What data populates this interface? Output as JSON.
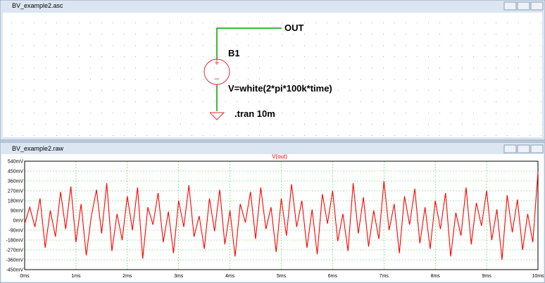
{
  "schematic": {
    "window_title": "BV_example2.asc",
    "net_label": "OUT",
    "source_name": "B1",
    "source_value": "V=white(2*pi*100k*time)",
    "directive": ".tran 10m"
  },
  "waveform": {
    "window_title": "BV_example2.raw"
  },
  "chart_data": {
    "type": "line",
    "x": [
      0,
      0.1,
      0.2,
      0.3,
      0.4,
      0.5,
      0.6,
      0.7,
      0.8,
      0.9,
      1,
      1.1,
      1.2,
      1.3,
      1.4,
      1.5,
      1.6,
      1.7,
      1.8,
      1.9,
      2,
      2.1,
      2.2,
      2.3,
      2.4,
      2.5,
      2.6,
      2.7,
      2.8,
      2.9,
      3,
      3.1,
      3.2,
      3.3,
      3.4,
      3.5,
      3.6,
      3.7,
      3.8,
      3.9,
      4,
      4.1,
      4.2,
      4.3,
      4.4,
      4.5,
      4.6,
      4.7,
      4.8,
      4.9,
      5,
      5.1,
      5.2,
      5.3,
      5.4,
      5.5,
      5.6,
      5.7,
      5.8,
      5.9,
      6,
      6.1,
      6.2,
      6.3,
      6.4,
      6.5,
      6.6,
      6.7,
      6.8,
      6.9,
      7,
      7.1,
      7.2,
      7.3,
      7.4,
      7.5,
      7.6,
      7.7,
      7.8,
      7.9,
      8,
      8.1,
      8.2,
      8.3,
      8.4,
      8.5,
      8.6,
      8.7,
      8.8,
      8.9,
      9,
      9.1,
      9.2,
      9.3,
      9.4,
      9.5,
      9.6,
      9.7,
      9.8,
      9.9,
      10
    ],
    "series": [
      {
        "name": "V(out)",
        "color": "#ff0000",
        "values": [
          -30,
          120,
          -60,
          200,
          -250,
          90,
          -150,
          260,
          -80,
          310,
          -200,
          150,
          -320,
          40,
          280,
          -120,
          340,
          -280,
          60,
          -180,
          220,
          -90,
          300,
          -350,
          120,
          -40,
          250,
          -200,
          80,
          -300,
          180,
          -60,
          320,
          -150,
          40,
          -260,
          200,
          -100,
          280,
          -220,
          90,
          -330,
          150,
          -20,
          260,
          -170,
          300,
          -80,
          120,
          -290,
          200,
          -140,
          330,
          -60,
          180,
          -250,
          100,
          -310,
          240,
          -30,
          270,
          -190,
          60,
          -280,
          340,
          -120,
          210,
          -240,
          90,
          -170,
          360,
          -90,
          150,
          -300,
          220,
          -40,
          290,
          -210,
          120,
          -260,
          180,
          -80,
          250,
          -330,
          70,
          -140,
          300,
          -220,
          160,
          -50,
          270,
          -180,
          100,
          -360,
          230,
          -110,
          190,
          -270,
          60,
          -200,
          440
        ]
      }
    ],
    "xlim": [
      0,
      10
    ],
    "xticks": [
      {
        "value": 0,
        "label": "0ms"
      },
      {
        "value": 1,
        "label": "1ms"
      },
      {
        "value": 2,
        "label": "2ms"
      },
      {
        "value": 3,
        "label": "3ms"
      },
      {
        "value": 4,
        "label": "4ms"
      },
      {
        "value": 5,
        "label": "5ms"
      },
      {
        "value": 6,
        "label": "6ms"
      },
      {
        "value": 7,
        "label": "7ms"
      },
      {
        "value": 8,
        "label": "8ms"
      },
      {
        "value": 9,
        "label": "9ms"
      },
      {
        "value": 10,
        "label": "10ms"
      }
    ],
    "ylim": [
      -450,
      540
    ],
    "yticks": [
      {
        "value": -450,
        "label": "-450mV"
      },
      {
        "value": -360,
        "label": "-360mV"
      },
      {
        "value": -270,
        "label": "-270mV"
      },
      {
        "value": -180,
        "label": "-180mV"
      },
      {
        "value": -90,
        "label": "-90mV"
      },
      {
        "value": 0,
        "label": "0mV"
      },
      {
        "value": 90,
        "label": "90mV"
      },
      {
        "value": 180,
        "label": "180mV"
      },
      {
        "value": 270,
        "label": "270mV"
      },
      {
        "value": 360,
        "label": "360mV"
      },
      {
        "value": 450,
        "label": "450mV"
      },
      {
        "value": 540,
        "label": "540mV"
      }
    ],
    "grid": true
  }
}
